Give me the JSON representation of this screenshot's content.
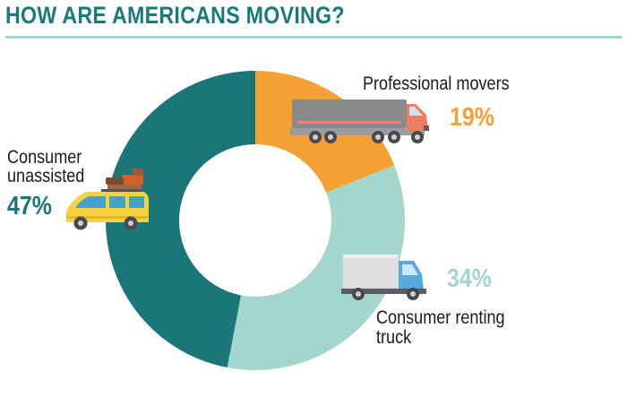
{
  "title": "HOW ARE AMERICANS MOVING?",
  "colors": {
    "title": "#1a7a7a",
    "rule": "#a3d5cf",
    "unassisted": "#1b767a",
    "professional": "#f5a033",
    "renting": "#a3d6cc"
  },
  "chart_data": {
    "type": "pie",
    "donut": true,
    "legend": "none",
    "slices": [
      {
        "label": "Professional movers",
        "value": 19,
        "display": "19%",
        "color": "#f5a033",
        "icon": "semi-truck-icon"
      },
      {
        "label": "Consumer renting truck",
        "value": 34,
        "display": "34%",
        "color": "#a3d6cc",
        "icon": "box-truck-icon"
      },
      {
        "label": "Consumer unassisted",
        "value": 47,
        "display": "47%",
        "color": "#1b767a",
        "icon": "van-with-luggage-icon"
      }
    ]
  },
  "labels": {
    "professional": {
      "line1": "Professional movers"
    },
    "renting": {
      "line1": "Consumer renting",
      "line2": "truck"
    },
    "unassisted": {
      "line1": "Consumer",
      "line2": "unassisted"
    }
  }
}
